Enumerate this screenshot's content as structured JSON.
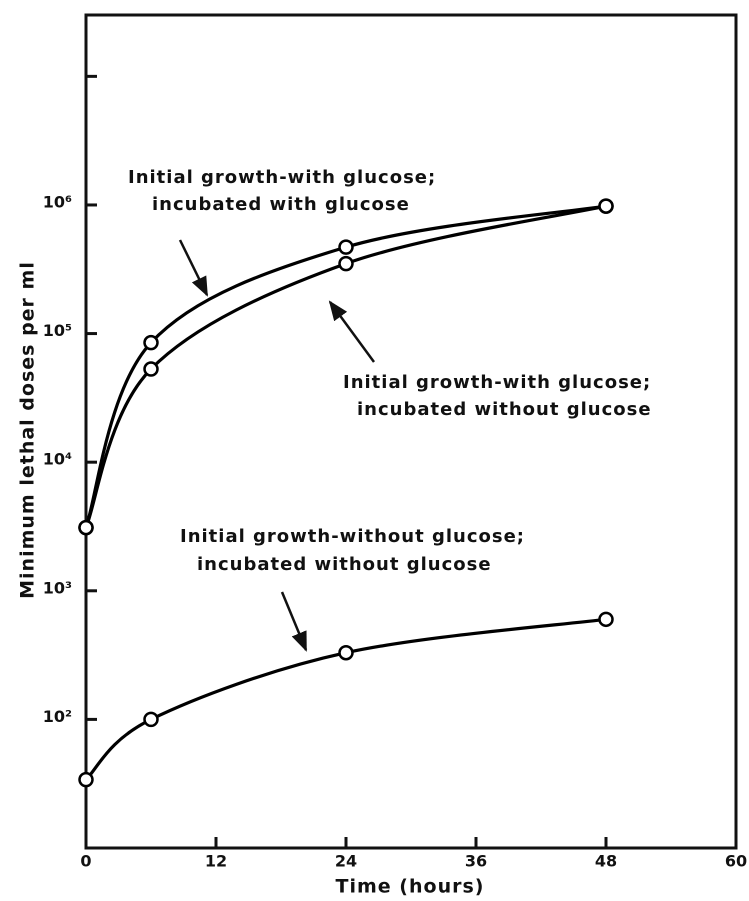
{
  "chart_data": {
    "type": "line",
    "x_label": "Time (hours)",
    "y_label": "Minimum lethal doses per ml",
    "log_y": true,
    "xlim": [
      0,
      60
    ],
    "xticks": [
      0,
      12,
      24,
      36,
      48,
      60
    ],
    "ylim": [
      10,
      30000000
    ],
    "yticks": [
      {
        "value": 100,
        "label": "10²"
      },
      {
        "value": 1000,
        "label": "10³"
      },
      {
        "value": 10000,
        "label": "10⁴"
      },
      {
        "value": 100000,
        "label": "10⁵"
      },
      {
        "value": 1000000,
        "label": "10⁶"
      }
    ],
    "minor_yticks": [
      10000000
    ],
    "series": [
      {
        "color": "#000000",
        "x": [
          0,
          6,
          24,
          48
        ],
        "values": [
          3100,
          85000,
          470000,
          980000
        ]
      },
      {
        "color": "#000000",
        "x": [
          0,
          6,
          24,
          48
        ],
        "values": [
          3100,
          53000,
          350000,
          980000
        ]
      },
      {
        "color": "#000000",
        "x": [
          0,
          6,
          24,
          48
        ],
        "values": [
          34,
          100,
          330,
          600
        ]
      }
    ],
    "annotations": [
      {
        "lines": [
          "Initial growth-with glucose;",
          "incubated with glucose"
        ]
      },
      {
        "lines": [
          "Initial growth-with glucose;",
          "incubated without glucose"
        ]
      },
      {
        "lines": [
          "Initial growth-without glucose;",
          "incubated without glucose"
        ]
      }
    ]
  }
}
